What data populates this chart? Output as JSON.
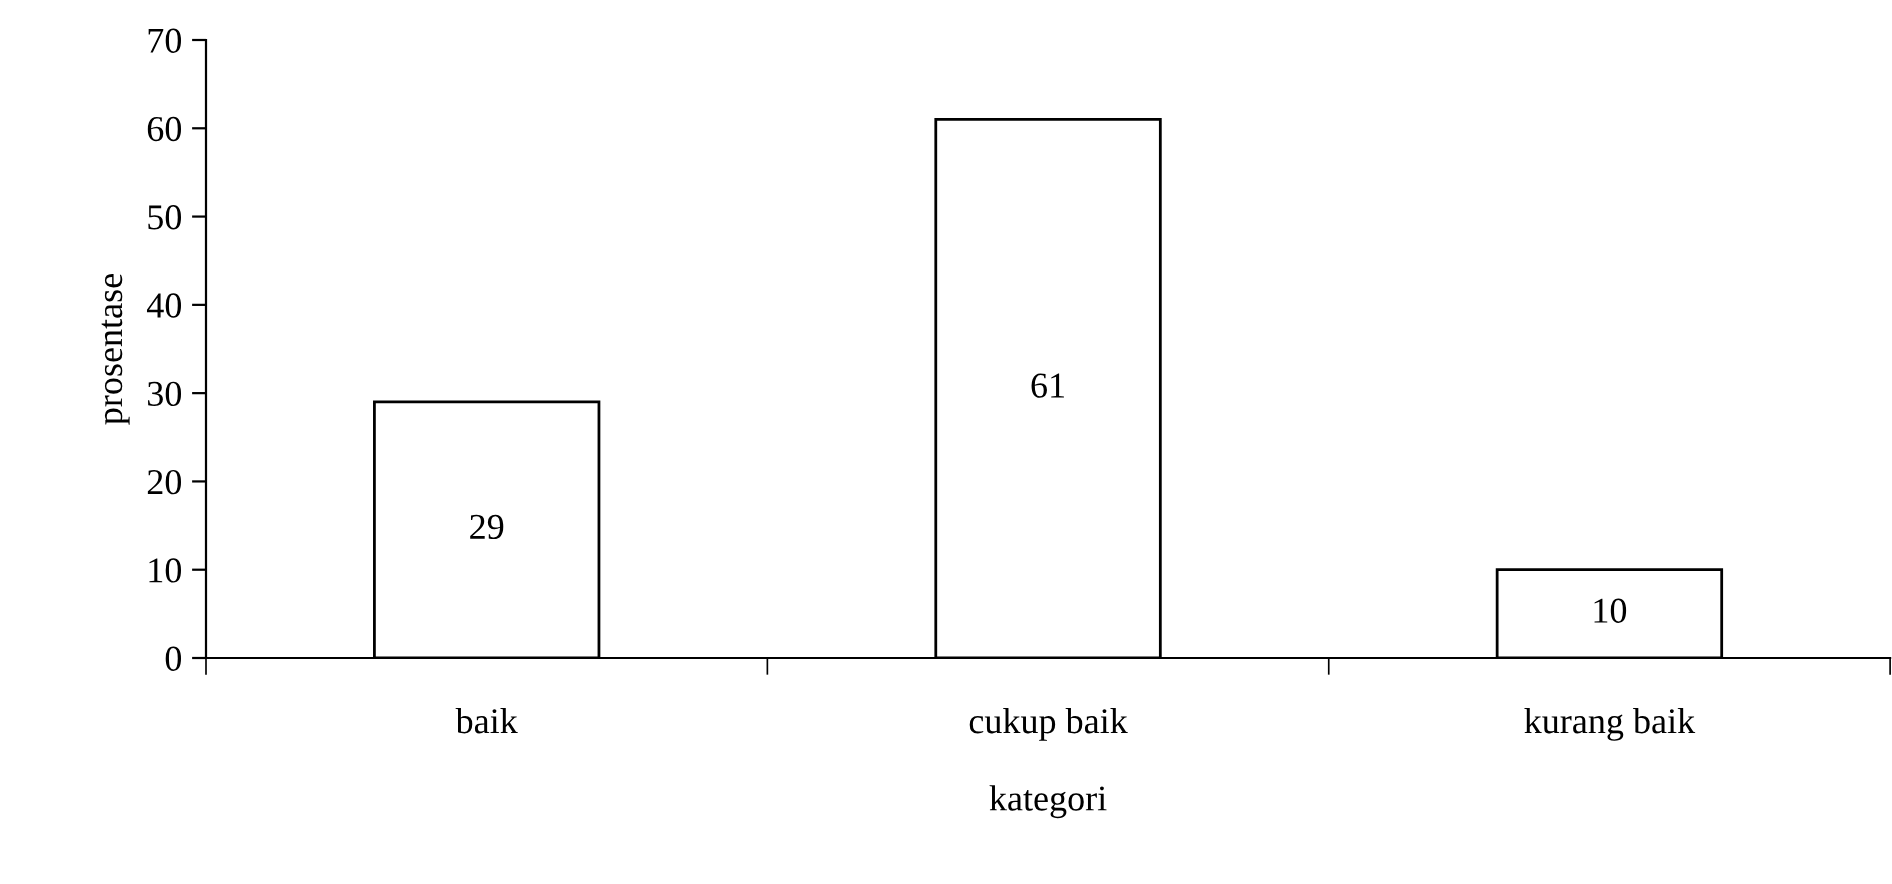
{
  "chart_data": {
    "type": "bar",
    "xlabel": "kategori",
    "ylabel": "prosentase",
    "categories": [
      "baik",
      "cukup baik",
      "kurang baik"
    ],
    "values": [
      29,
      61,
      10
    ],
    "color": "#ffffff",
    "ylim": [
      0,
      70
    ],
    "yticks": [
      0,
      10,
      20,
      30,
      40,
      50,
      60,
      70
    ],
    "grid": false,
    "data_labels": true
  }
}
